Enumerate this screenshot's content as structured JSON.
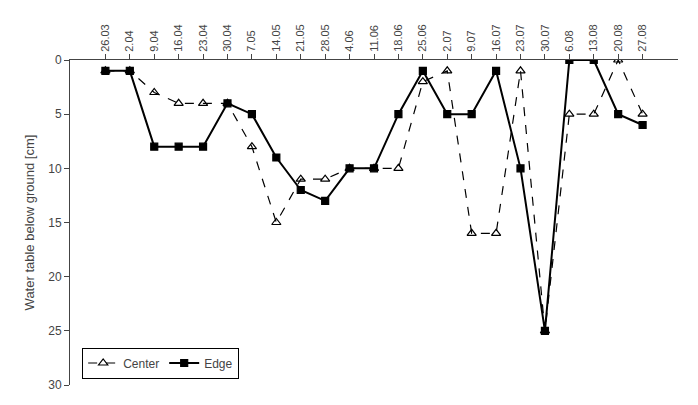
{
  "chart_data": {
    "type": "line",
    "categories": [
      "26.03",
      "2.04",
      "9.04",
      "16.04",
      "23.04",
      "30.04",
      "7.05",
      "14.05",
      "21.05",
      "28.05",
      "4.06",
      "11.06",
      "18.06",
      "25.06",
      "2.07",
      "9.07",
      "16.07",
      "23.07",
      "30.07",
      "6.08",
      "13.08",
      "20.08",
      "27.08"
    ],
    "series": [
      {
        "name": "Center",
        "color": "#000000",
        "marker": "triangle-up-open",
        "line_style": "dash",
        "values": [
          1,
          1,
          3,
          4,
          4,
          4,
          8,
          15,
          11,
          11,
          10,
          10,
          10,
          2,
          1,
          16,
          16,
          1,
          25,
          5,
          5,
          0,
          5
        ]
      },
      {
        "name": "Edge",
        "color": "#000000",
        "marker": "square",
        "line_style": "solid",
        "values": [
          1,
          1,
          8,
          8,
          8,
          4,
          5,
          9,
          12,
          13,
          10,
          10,
          5,
          1,
          5,
          5,
          1,
          10,
          25,
          0,
          0,
          5,
          6
        ]
      }
    ],
    "y_label": "Water table below ground [cm]",
    "ylim": [
      30,
      0
    ],
    "yticks": [
      0,
      5,
      10,
      15,
      20,
      25,
      30
    ],
    "grid": false,
    "legend": "lower left"
  }
}
